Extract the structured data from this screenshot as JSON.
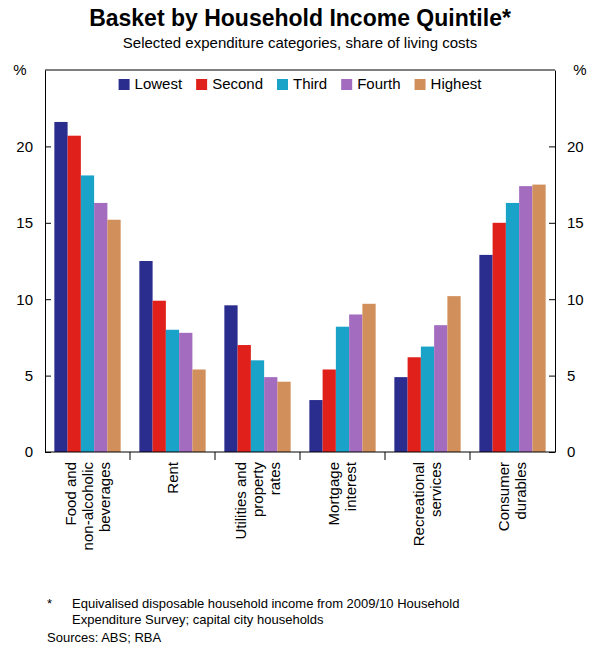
{
  "chart_data": {
    "type": "bar",
    "title": "Basket by Household Income Quintile*",
    "subtitle": "Selected expenditure categories, share of living costs",
    "y_label": "%",
    "categories": [
      "Food and\nnon-alcoholic\nbeverages",
      "Rent",
      "Utilities and\nproperty\nrates",
      "Mortgage\ninterest",
      "Recreational\nservices",
      "Consumer\ndurables"
    ],
    "series": [
      {
        "name": "Lowest",
        "color": "#2b2d8e",
        "values": [
          21.6,
          12.5,
          9.6,
          3.4,
          4.9,
          12.9
        ]
      },
      {
        "name": "Second",
        "color": "#e0201b",
        "values": [
          20.7,
          9.9,
          7.0,
          5.4,
          6.2,
          15.0
        ]
      },
      {
        "name": "Third",
        "color": "#1aa3c8",
        "values": [
          18.1,
          8.0,
          6.0,
          8.2,
          6.9,
          16.3
        ]
      },
      {
        "name": "Fourth",
        "color": "#a36cbf",
        "values": [
          16.3,
          7.8,
          4.9,
          9.0,
          8.3,
          17.4
        ]
      },
      {
        "name": "Highest",
        "color": "#d18f5b",
        "values": [
          15.2,
          5.4,
          4.6,
          9.7,
          10.2,
          17.5
        ]
      }
    ],
    "ylim": [
      0,
      25
    ],
    "yticks": [
      0,
      5,
      10,
      15,
      20
    ],
    "grid": false,
    "legend": "top",
    "footnote_mark": "*",
    "footnote": "Equivalised disposable household income from 2009/10 Household\nExpenditure Survey; capital city households",
    "source": "Sources: ABS; RBA"
  }
}
